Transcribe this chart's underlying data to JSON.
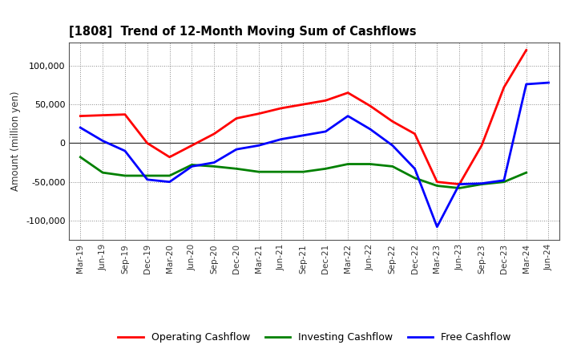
{
  "title": "[1808]  Trend of 12-Month Moving Sum of Cashflows",
  "ylabel": "Amount (million yen)",
  "x_labels": [
    "Mar-19",
    "Jun-19",
    "Sep-19",
    "Dec-19",
    "Mar-20",
    "Jun-20",
    "Sep-20",
    "Dec-20",
    "Mar-21",
    "Jun-21",
    "Sep-21",
    "Dec-21",
    "Mar-22",
    "Jun-22",
    "Sep-22",
    "Dec-22",
    "Mar-23",
    "Jun-23",
    "Sep-23",
    "Dec-23",
    "Mar-24",
    "Jun-24"
  ],
  "operating": [
    35000,
    36000,
    37000,
    0,
    -18000,
    -3000,
    12000,
    32000,
    38000,
    45000,
    50000,
    55000,
    65000,
    48000,
    28000,
    12000,
    -50000,
    -53000,
    -3000,
    72000,
    120000,
    null
  ],
  "investing": [
    -18000,
    -38000,
    -42000,
    -42000,
    -42000,
    -28000,
    -30000,
    -33000,
    -37000,
    -37000,
    -37000,
    -33000,
    -27000,
    -27000,
    -30000,
    -45000,
    -55000,
    -58000,
    -53000,
    -50000,
    -38000,
    null
  ],
  "free": [
    20000,
    3000,
    -10000,
    -47000,
    -50000,
    -30000,
    -25000,
    -8000,
    -3000,
    5000,
    10000,
    15000,
    35000,
    18000,
    -3000,
    -33000,
    -108000,
    -53000,
    -52000,
    -48000,
    76000,
    78000
  ],
  "operating_color": "#ff0000",
  "investing_color": "#008000",
  "free_color": "#0000ff",
  "ylim": [
    -125000,
    130000
  ],
  "yticks": [
    -100000,
    -50000,
    0,
    50000,
    100000
  ],
  "background_color": "#ffffff",
  "plot_bg_color": "#f0f0f0",
  "grid_color": "#888888"
}
